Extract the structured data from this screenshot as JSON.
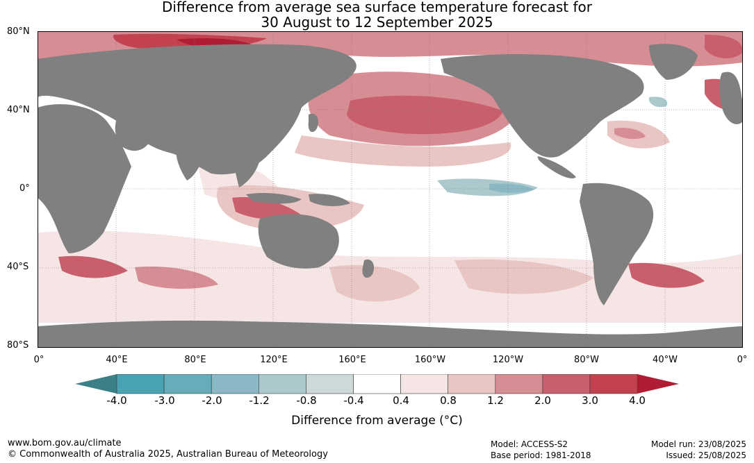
{
  "title": {
    "line1": "Difference from average sea surface temperature forecast for",
    "line2": "30 August to 12 September 2025"
  },
  "axes": {
    "lat_labels": [
      "80°N",
      "40°N",
      "0°",
      "40°S",
      "80°S"
    ],
    "lon_labels": [
      "0°",
      "40°E",
      "80°E",
      "120°E",
      "160°E",
      "160°W",
      "120°W",
      "80°W",
      "40°W",
      "0°"
    ]
  },
  "colorbar": {
    "tick_labels": [
      "-4.0",
      "-3.0",
      "-2.0",
      "-1.2",
      "-0.8",
      "-0.4",
      "0.4",
      "0.8",
      "1.2",
      "2.0",
      "3.0",
      "4.0"
    ],
    "title": "Difference from average (°C)",
    "colors": {
      "below_min": "#3c8087",
      "bins": [
        "#49a3b5",
        "#66acbb",
        "#8bb8c5",
        "#abc9cd",
        "#cdd8d9",
        "#ffffff",
        "#f5e6e5",
        "#e9c5c3",
        "#d78d94",
        "#c95f6c",
        "#c2434f"
      ],
      "above_max": "#b01c33"
    }
  },
  "map_colors": {
    "land": "#808080",
    "ocean_neutral": "#ffffff",
    "warm_1": "#f5e6e5",
    "warm_2": "#e9c5c3",
    "warm_3": "#d78d94",
    "warm_4": "#c95f6c",
    "warm_5": "#c2434f",
    "hot": "#b01c33",
    "cool_1": "#cdd8d9",
    "cool_2": "#abc9cd",
    "cool_3": "#8bb8c5"
  },
  "footer": {
    "website": "www.bom.gov.au/climate",
    "copyright": "© Commonwealth of Australia 2025, Australian Bureau of Meteorology",
    "model": "Model: ACCESS-S2",
    "base_period": "Base period: 1981-2018",
    "model_run": "Model run: 23/08/2025",
    "issued": "Issued: 25/08/2025"
  }
}
